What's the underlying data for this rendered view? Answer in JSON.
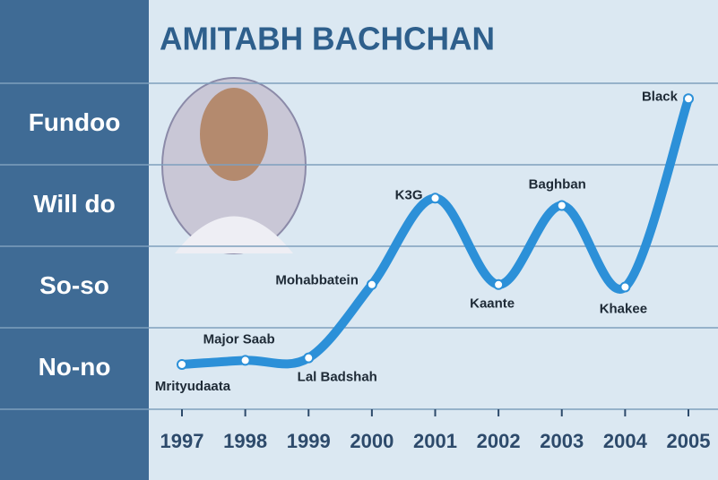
{
  "chart_data": {
    "type": "line",
    "title": "AMITABH BACHCHAN",
    "x": [
      1997,
      1998,
      1999,
      2000,
      2001,
      2002,
      2003,
      2004,
      2005
    ],
    "xlim": [
      1997,
      2005
    ],
    "xticks": [
      1997,
      1998,
      1999,
      2000,
      2001,
      2002,
      2003,
      2004,
      2005
    ],
    "series": [
      {
        "color": "#2c90d8",
        "values": [
          1.05,
          1.1,
          1.13,
          2.03,
          3.09,
          2.03,
          3.0,
          2.0,
          4.31
        ],
        "point_labels": [
          "Mrityudaata",
          "Major Saab",
          "Lal Badshah",
          "Mohabbatein",
          "K3G",
          "Kaante",
          "Baghban",
          "Khakee",
          "Black"
        ]
      }
    ],
    "ylim": [
      0.5,
      4.5
    ],
    "yticks": [
      {
        "value": 1,
        "label": "No-no"
      },
      {
        "value": 2,
        "label": "So-so"
      },
      {
        "value": 3,
        "label": "Will do"
      },
      {
        "value": 4,
        "label": "Fundoo"
      }
    ],
    "grid": true
  }
}
